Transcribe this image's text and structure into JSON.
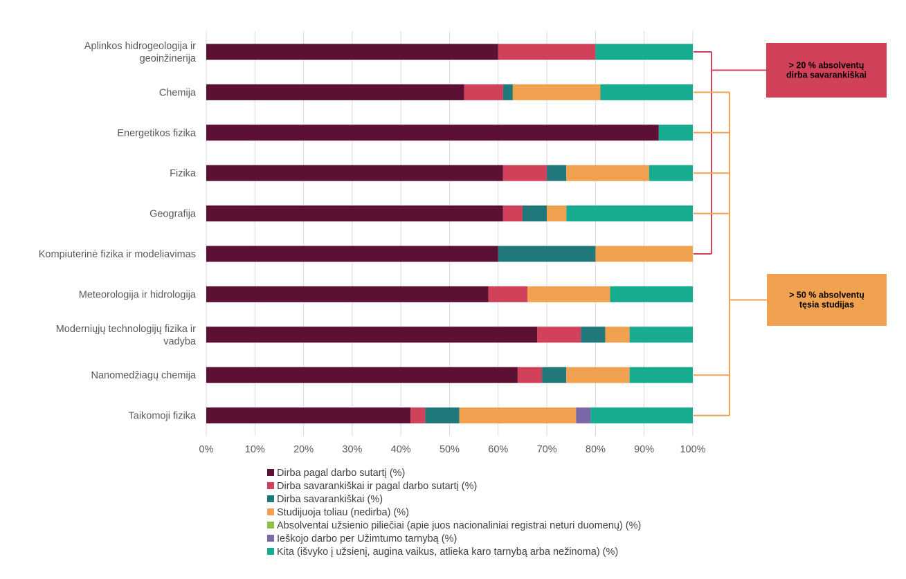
{
  "chart_data": {
    "type": "bar",
    "orientation": "horizontal",
    "stacked": true,
    "categories": [
      [
        "Aplinkos hidrogeologija ir",
        "geoinžinerija"
      ],
      [
        "Chemija"
      ],
      [
        "Energetikos fizika"
      ],
      [
        "Fizika"
      ],
      [
        "Geografija"
      ],
      [
        "Kompiuterinė fizika ir modeliavimas"
      ],
      [
        "Meteorologija ir hidrologija"
      ],
      [
        "Moderniųjų technologijų fizika ir",
        "vadyba"
      ],
      [
        "Nanomedžiagų chemija"
      ],
      [
        "Taikomoji fizika"
      ]
    ],
    "series": [
      {
        "name": "Dirba pagal darbo sutartį (%)",
        "color": "#5c1034",
        "values": [
          60,
          53,
          93,
          61,
          61,
          60,
          58,
          68,
          64,
          42
        ]
      },
      {
        "name": "Dirba savarankiškai ir pagal darbo sutartį (%)",
        "color": "#d1415a",
        "values": [
          20,
          8,
          0,
          9,
          4,
          0,
          8,
          9,
          5,
          3
        ]
      },
      {
        "name": "Dirba savarankiškai (%)",
        "color": "#20787a",
        "values": [
          0,
          2,
          0,
          4,
          5,
          20,
          0,
          5,
          5,
          7
        ]
      },
      {
        "name": "Studijuoja toliau (nedirba) (%)",
        "color": "#f0a251",
        "values": [
          0,
          18,
          0,
          17,
          4,
          20,
          17,
          5,
          13,
          24
        ]
      },
      {
        "name": "Absolventai užsienio piliečiai (apie juos nacionaliniai registrai neturi duomenų) (%)",
        "color": "#8bc34a",
        "values": [
          0,
          0,
          0,
          0,
          0,
          0,
          0,
          0,
          0,
          0
        ]
      },
      {
        "name": "Ieškojo darbo per Užimtumo tarnybą (%)",
        "color": "#7b68a6",
        "values": [
          0,
          0,
          0,
          0,
          0,
          0,
          0,
          0,
          0,
          3
        ]
      },
      {
        "name": "Kita (išvyko į užsienį, augina vaikus, atlieka karo tarnybą arba nežinoma) (%)",
        "color": "#17ab8f",
        "values": [
          20,
          19,
          7,
          9,
          26,
          0,
          17,
          13,
          13,
          21
        ]
      }
    ],
    "x_ticks": [
      "0%",
      "10%",
      "20%",
      "30%",
      "40%",
      "50%",
      "60%",
      "70%",
      "80%",
      "90%",
      "100%"
    ],
    "xlim": [
      0,
      100
    ],
    "grid": true,
    "legend_position": "bottom",
    "annotations": [
      {
        "text": [
          "> 20 % absolventų",
          "dirba savarankiškai"
        ],
        "color": "#d1415a",
        "categories": [
          0,
          5
        ]
      },
      {
        "text": [
          "> 50 % absolventų",
          "tęsia studijas"
        ],
        "color": "#f0a251",
        "categories": [
          1,
          2,
          3,
          4,
          8,
          9
        ]
      }
    ]
  }
}
